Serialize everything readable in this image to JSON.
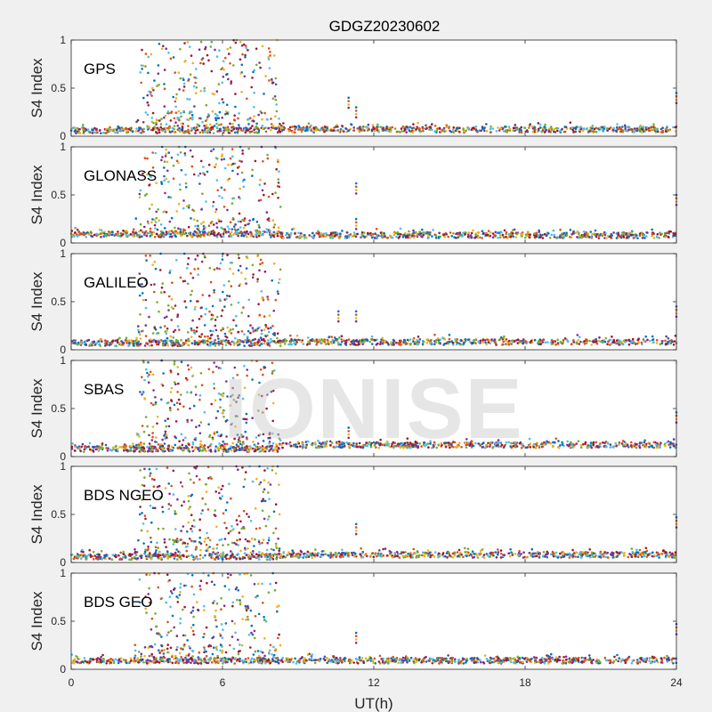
{
  "chart_data": {
    "type": "scatter",
    "title": "GDGZ20230602",
    "xlabel": "UT(h)",
    "ylabel": "S4 Index",
    "xlim": [
      0,
      24
    ],
    "ylim": [
      0,
      1
    ],
    "xticks": [
      "0",
      "6",
      "12",
      "18",
      "24"
    ],
    "yticks": [
      "0",
      "0.5",
      "1"
    ],
    "watermark": "IONISE",
    "series_colors": [
      "#0072BD",
      "#D95319",
      "#EDB120",
      "#7E2F8E",
      "#77AC30",
      "#4DBEEE",
      "#A2142F"
    ],
    "panels": [
      {
        "name": "GPS",
        "baseline": 0.06,
        "quiet_baseline": 0.07,
        "active_window": [
          2.5,
          8.3
        ],
        "spikes": [
          [
            11,
            0.4
          ],
          [
            11.3,
            0.3
          ],
          [
            24,
            0.45
          ]
        ]
      },
      {
        "name": "GLONASS",
        "baseline": 0.09,
        "quiet_baseline": 0.08,
        "active_window": [
          2.5,
          8.3
        ],
        "spikes": [
          [
            11.3,
            0.62
          ],
          [
            11.3,
            0.25
          ],
          [
            24,
            0.5
          ]
        ]
      },
      {
        "name": "GALILEO",
        "baseline": 0.07,
        "quiet_baseline": 0.08,
        "active_window": [
          2.5,
          8.3
        ],
        "spikes": [
          [
            10.6,
            0.4
          ],
          [
            11.3,
            0.4
          ],
          [
            24,
            0.45
          ]
        ]
      },
      {
        "name": "SBAS",
        "baseline": 0.08,
        "quiet_baseline": 0.12,
        "active_window": [
          2.5,
          8.3
        ],
        "spikes": [
          [
            11,
            0.3
          ],
          [
            24,
            0.46
          ]
        ]
      },
      {
        "name": "BDS NGEO",
        "baseline": 0.06,
        "quiet_baseline": 0.08,
        "active_window": [
          2.5,
          8.3
        ],
        "spikes": [
          [
            11.3,
            0.4
          ],
          [
            24,
            0.47
          ]
        ]
      },
      {
        "name": "BDS GEO",
        "baseline": 0.09,
        "quiet_baseline": 0.09,
        "active_window": [
          2.5,
          8.3
        ],
        "spikes": [
          [
            11.3,
            0.38
          ],
          [
            24,
            0.47
          ]
        ]
      }
    ]
  }
}
